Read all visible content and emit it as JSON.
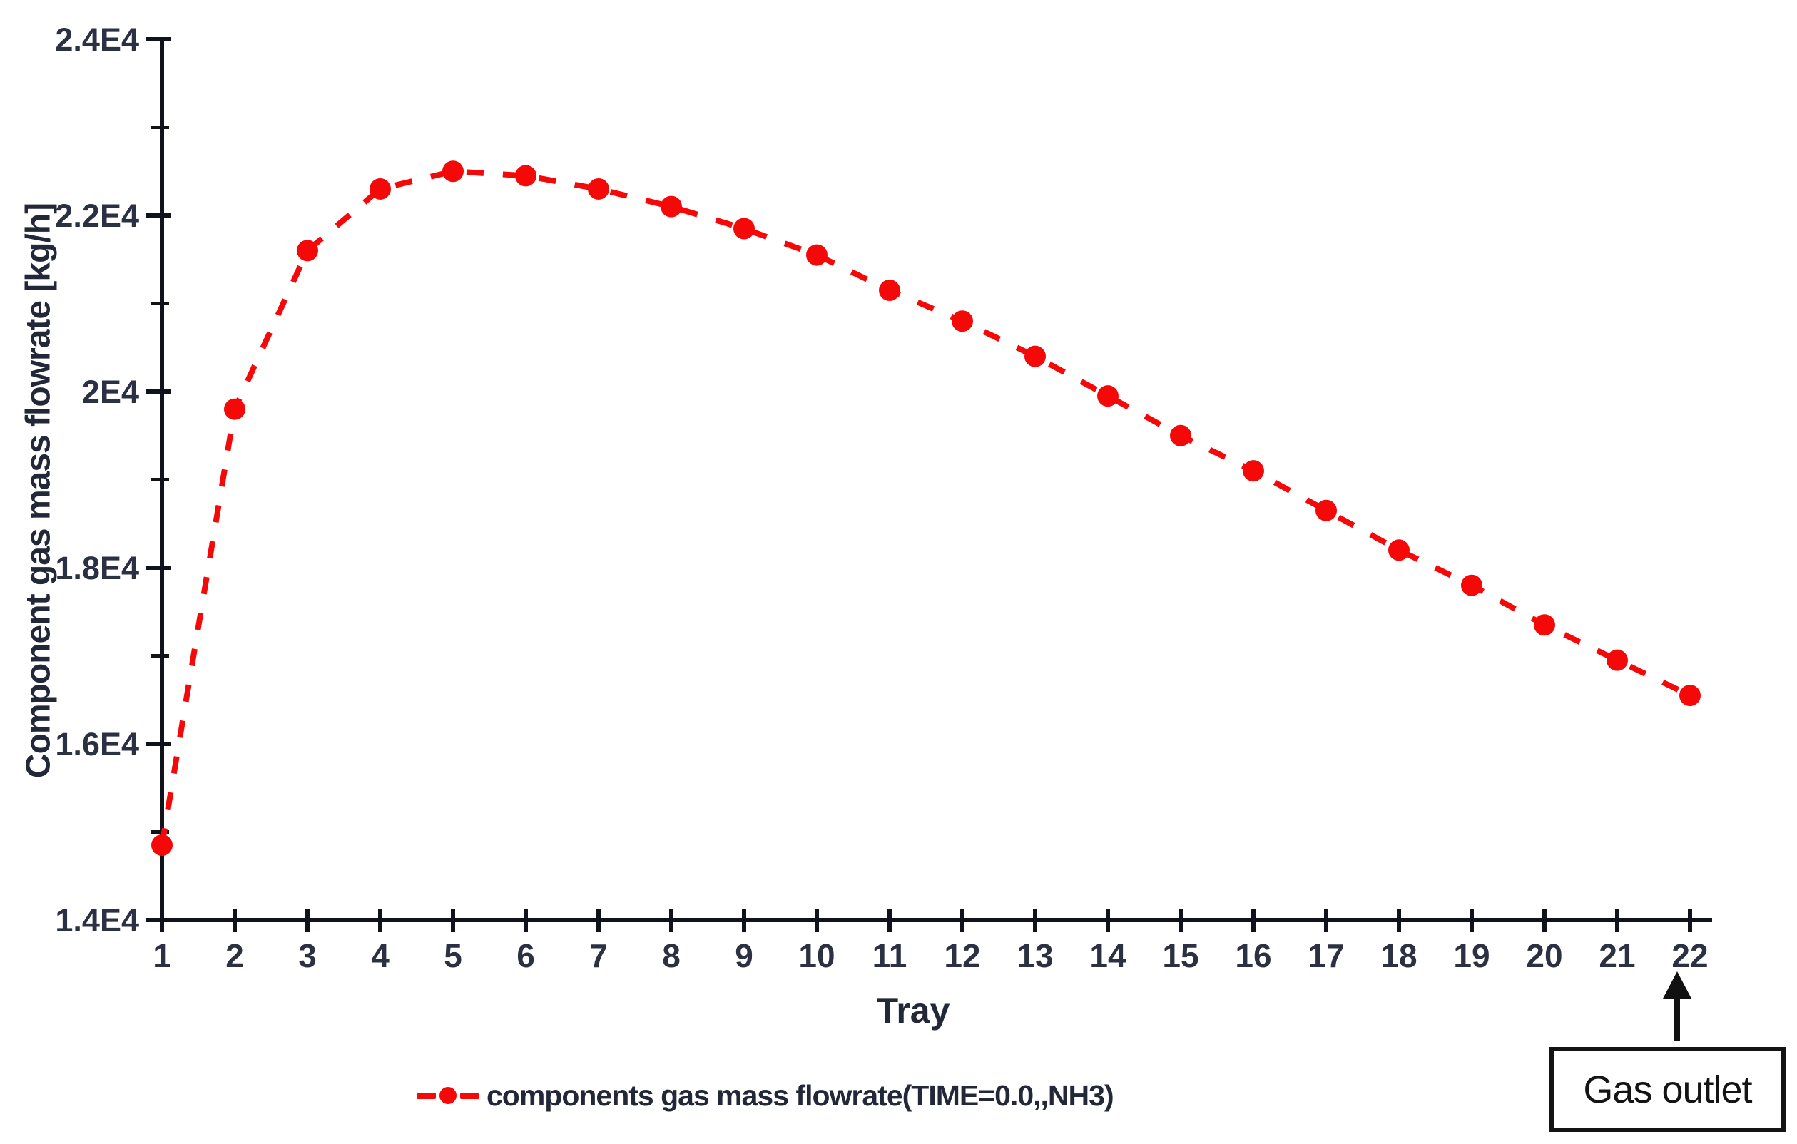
{
  "chart_data": {
    "type": "line",
    "title": "",
    "xlabel": "Tray",
    "ylabel": "Component gas mass flowrate [kg/h]",
    "x": [
      1,
      2,
      3,
      4,
      5,
      6,
      7,
      8,
      9,
      10,
      11,
      12,
      13,
      14,
      15,
      16,
      17,
      18,
      19,
      20,
      21,
      22
    ],
    "series": [
      {
        "name": "components gas mass flowrate(TIME=0.0,,NH3)",
        "values": [
          14850,
          19800,
          21600,
          22300,
          22500,
          22450,
          22300,
          22100,
          21850,
          21550,
          21150,
          20800,
          20400,
          19950,
          19500,
          19100,
          18650,
          18200,
          17800,
          17350,
          16950,
          16550
        ]
      }
    ],
    "xlim": [
      1,
      22
    ],
    "ylim": [
      14000,
      24000
    ],
    "x_ticks": [
      "1",
      "2",
      "3",
      "4",
      "5",
      "6",
      "7",
      "8",
      "9",
      "10",
      "11",
      "12",
      "13",
      "14",
      "15",
      "16",
      "17",
      "18",
      "19",
      "20",
      "21",
      "22"
    ],
    "y_major_ticks": [
      {
        "value": 14000,
        "label": "1.4E4"
      },
      {
        "value": 16000,
        "label": "1.6E4"
      },
      {
        "value": 18000,
        "label": "1.8E4"
      },
      {
        "value": 20000,
        "label": "2E4"
      },
      {
        "value": 22000,
        "label": "2.2E4"
      },
      {
        "value": 24000,
        "label": "2.4E4"
      }
    ],
    "y_minor_ticks": [
      15000,
      17000,
      19000,
      21000,
      23000
    ],
    "grid": false,
    "legend_position": "bottom",
    "line_style": "dashed",
    "marker": "circle",
    "colors": {
      "series": "#f40808",
      "axis": "#10131c",
      "text": "#2b3142"
    }
  },
  "annotation": {
    "label": "Gas outlet"
  }
}
